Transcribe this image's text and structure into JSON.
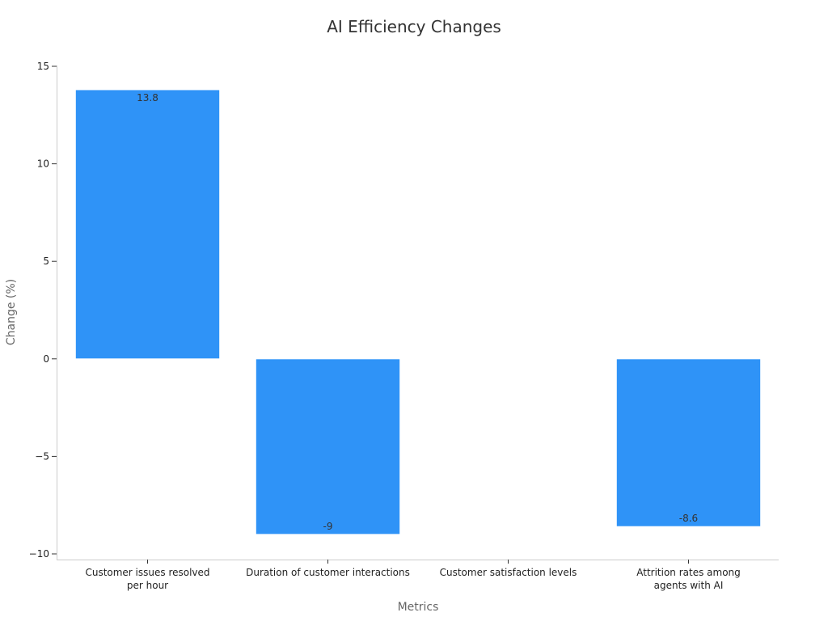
{
  "chart_data": {
    "type": "bar",
    "title": "AI Efficiency Changes",
    "xlabel": "Metrics",
    "ylabel": "Change (%)",
    "categories": [
      [
        "Customer issues resolved",
        "per hour"
      ],
      [
        "Duration of customer interactions"
      ],
      [
        "Customer satisfaction levels"
      ],
      [
        "Attrition rates among",
        "agents with AI"
      ]
    ],
    "values": [
      13.8,
      -9,
      0,
      -8.6
    ],
    "data_labels": [
      "13.8",
      "-9",
      "",
      "-8.6"
    ],
    "ylim": [
      -10,
      15
    ],
    "yticks": [
      -10,
      -5,
      0,
      5,
      10,
      15
    ],
    "ytick_labels": [
      "−10",
      "−5",
      "0",
      "5",
      "10",
      "15"
    ],
    "bar_color": "#2f93f7",
    "grid": false,
    "legend": "none"
  }
}
